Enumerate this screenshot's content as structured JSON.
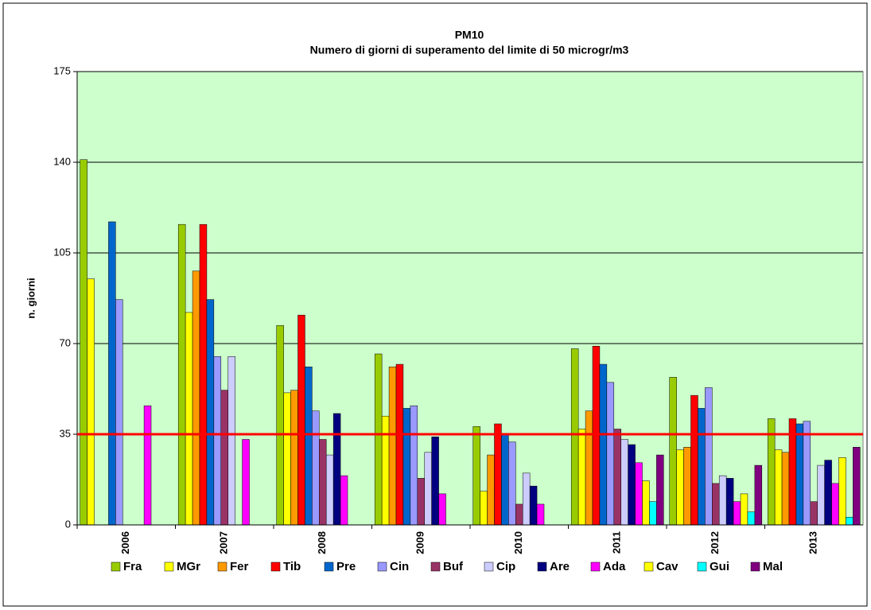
{
  "chart_data": {
    "type": "bar",
    "title": "PM10",
    "subtitle": "Numero di giorni di superamento del limite  di 50 microgr/m3",
    "y_label": "n. giorni",
    "categories": [
      "2006",
      "2007",
      "2008",
      "2009",
      "2010",
      "2011",
      "2012",
      "2013"
    ],
    "series": [
      {
        "name": "Fra",
        "color": "#99cc00",
        "values": [
          141,
          116,
          77,
          66,
          38,
          68,
          57,
          41
        ]
      },
      {
        "name": "MGr",
        "color": "#ffff00",
        "values": [
          95,
          82,
          51,
          42,
          13,
          37,
          29,
          29
        ]
      },
      {
        "name": "Fer",
        "color": "#ff9900",
        "values": [
          null,
          98,
          52,
          61,
          27,
          44,
          30,
          28
        ]
      },
      {
        "name": "Tib",
        "color": "#ff0000",
        "values": [
          null,
          116,
          81,
          62,
          39,
          69,
          50,
          41
        ]
      },
      {
        "name": "Pre",
        "color": "#0066cc",
        "values": [
          117,
          87,
          61,
          45,
          35,
          62,
          45,
          39
        ]
      },
      {
        "name": "Cin",
        "color": "#9999ff",
        "values": [
          87,
          65,
          44,
          46,
          32,
          55,
          53,
          40
        ]
      },
      {
        "name": "Buf",
        "color": "#993366",
        "values": [
          null,
          52,
          33,
          18,
          8,
          37,
          16,
          9
        ]
      },
      {
        "name": "Cip",
        "color": "#ccccff",
        "values": [
          null,
          65,
          27,
          28,
          20,
          33,
          19,
          23
        ]
      },
      {
        "name": "Are",
        "color": "#000080",
        "values": [
          null,
          null,
          43,
          34,
          15,
          31,
          18,
          25
        ]
      },
      {
        "name": "Ada",
        "color": "#ff00ff",
        "values": [
          46,
          33,
          19,
          12,
          8,
          24,
          9,
          16
        ]
      },
      {
        "name": "Cav",
        "color": "#ffff00",
        "values": [
          null,
          null,
          null,
          null,
          null,
          17,
          12,
          26
        ]
      },
      {
        "name": "Gui",
        "color": "#00ffff",
        "values": [
          null,
          null,
          null,
          null,
          null,
          9,
          5,
          3
        ]
      },
      {
        "name": "Mal",
        "color": "#800080",
        "values": [
          null,
          null,
          null,
          null,
          null,
          27,
          23,
          30
        ]
      }
    ],
    "ylim": [
      0,
      175
    ],
    "yticks": [
      0,
      35,
      70,
      105,
      140,
      175
    ],
    "grid": true,
    "reference_line": {
      "value": 35,
      "color": "#ff0000"
    },
    "plot_background": "#ccffcc",
    "legend": "bottom"
  }
}
